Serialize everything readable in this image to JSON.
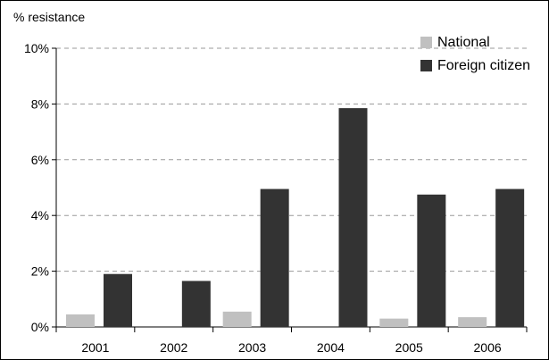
{
  "chart_data": {
    "type": "bar",
    "ylabel": "% resistance",
    "xlabel": "",
    "categories": [
      "2001",
      "2002",
      "2003",
      "2004",
      "2005",
      "2006"
    ],
    "series": [
      {
        "name": "National",
        "values": [
          0.45,
          0,
          0.55,
          0,
          0.3,
          0.35
        ],
        "color": "#c0c0c0"
      },
      {
        "name": "Foreign citizen",
        "values": [
          1.9,
          1.65,
          4.95,
          7.85,
          4.75,
          4.95
        ],
        "color": "#333333"
      }
    ],
    "ylim": [
      0,
      10
    ],
    "yticks": [
      0,
      2,
      4,
      6,
      8,
      10
    ],
    "ytick_labels": [
      "0%",
      "2%",
      "4%",
      "6%",
      "8%",
      "10%"
    ],
    "grid": true,
    "legend_position": "top-right"
  }
}
